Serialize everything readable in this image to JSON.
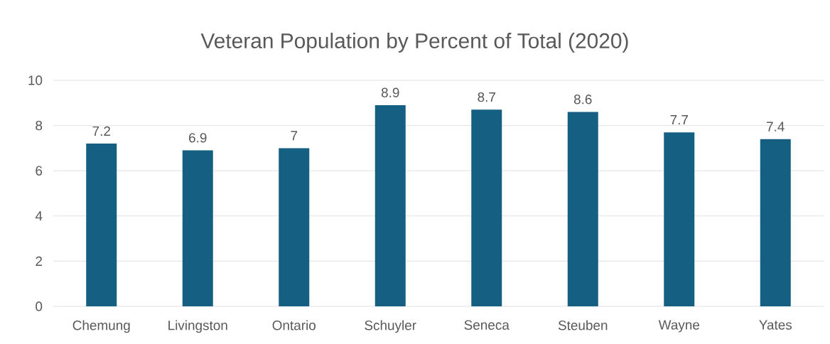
{
  "chart_data": {
    "type": "bar",
    "title": "Veteran Population by Percent of Total (2020)",
    "categories": [
      "Chemung",
      "Livingston",
      "Ontario",
      "Schuyler",
      "Seneca",
      "Steuben",
      "Wayne",
      "Yates"
    ],
    "values": [
      7.2,
      6.9,
      7,
      8.9,
      8.7,
      8.6,
      7.7,
      7.4
    ],
    "value_labels": [
      "7.2",
      "6.9",
      "7",
      "8.9",
      "8.7",
      "8.6",
      "7.7",
      "7.4"
    ],
    "color": "#156082",
    "ylim": [
      0,
      10
    ],
    "yticks": [
      0,
      2,
      4,
      6,
      8,
      10
    ],
    "grid": "y"
  }
}
